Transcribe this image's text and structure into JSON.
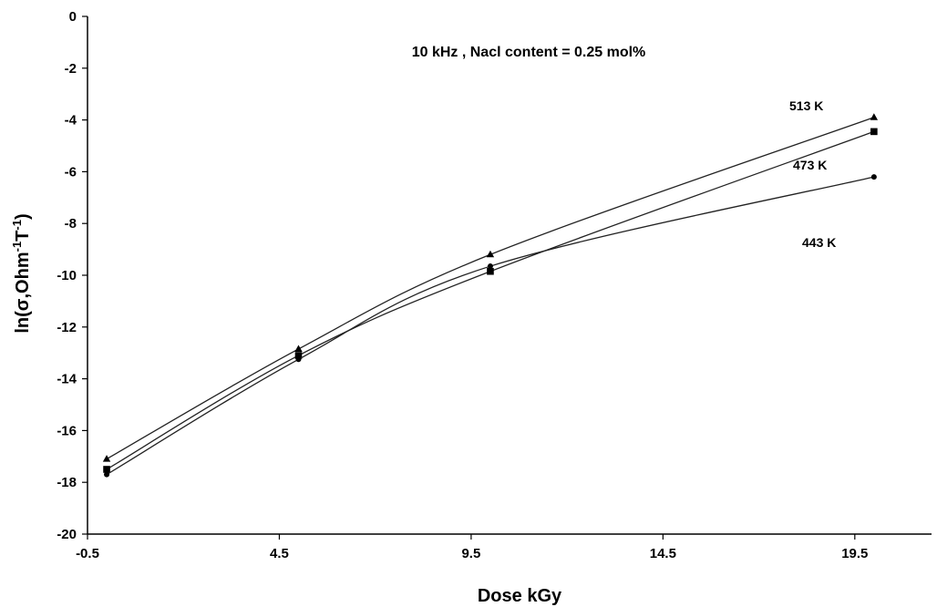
{
  "chart_data": {
    "type": "line",
    "annotation": "10 kHz , Nacl content = 0.25 mol%",
    "xlabel": "Dose kGy",
    "ylabel_parts": [
      "ln(σ,Ohm",
      "-1",
      "T",
      "-1",
      ")"
    ],
    "xlim": [
      -0.5,
      21.5
    ],
    "ylim": [
      -20,
      0
    ],
    "xticks": [
      -0.5,
      4.5,
      9.5,
      14.5,
      19.5
    ],
    "xtick_labels": [
      "-0.5",
      "4.5",
      "9.5",
      "14.5",
      "19.5"
    ],
    "yticks": [
      0,
      -2,
      -4,
      -6,
      -8,
      -10,
      -12,
      -14,
      -16,
      -18,
      -20
    ],
    "ytick_labels": [
      "0",
      "-2",
      "-4",
      "-6",
      "-8",
      "-10",
      "-12",
      "-14",
      "-16",
      "-18",
      "-20"
    ],
    "grid": false,
    "series": [
      {
        "name": "513 K",
        "marker": "triangle",
        "x": [
          0,
          5,
          10,
          20
        ],
        "y": [
          -17.1,
          -12.85,
          -9.2,
          -3.9
        ]
      },
      {
        "name": "473 K",
        "marker": "square",
        "x": [
          0,
          5,
          10,
          20
        ],
        "y": [
          -17.5,
          -13.1,
          -9.85,
          -4.45
        ]
      },
      {
        "name": "443 K",
        "marker": "circle",
        "x": [
          0,
          5,
          10,
          20
        ],
        "y": [
          -17.7,
          -13.25,
          -9.65,
          -6.2
        ]
      }
    ]
  }
}
